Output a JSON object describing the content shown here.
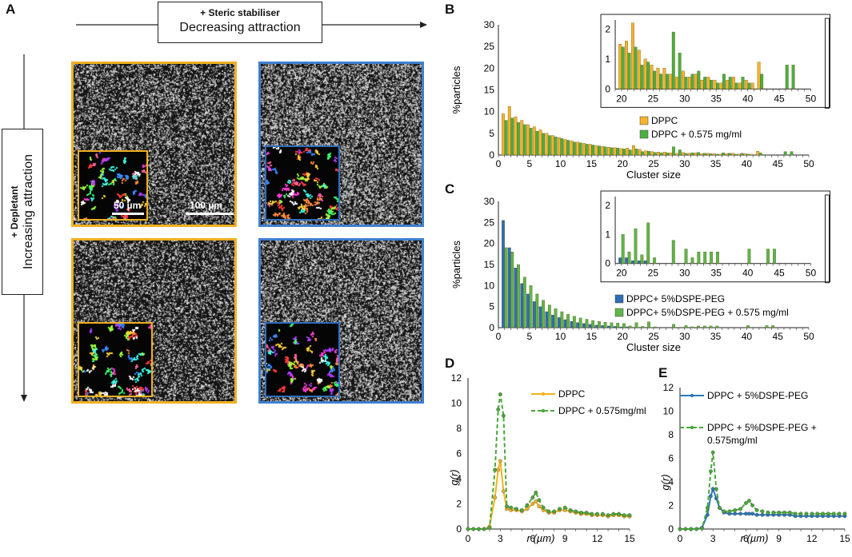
{
  "panel_labels": {
    "a": "A",
    "b": "B",
    "c": "C",
    "d": "D",
    "e": "E"
  },
  "panel_a": {
    "top_box": {
      "line1": "+ Steric stabiliser",
      "line2": "Decreasing attraction"
    },
    "side_box": {
      "line1": "+ Depletant",
      "line2": "Increasing attraction"
    },
    "scale_inset": "50 µm",
    "scale_main": "100 µm",
    "colors": {
      "dppc_border": "#f0b020",
      "peg_border": "#3f7fd0"
    }
  },
  "chart_data": [
    {
      "id": "B",
      "type": "bar",
      "title": "",
      "xlabel": "Cluster size",
      "ylabel": "%particles",
      "xlim": [
        0,
        50
      ],
      "ylim": [
        0,
        30
      ],
      "xticks": [
        0,
        5,
        10,
        15,
        20,
        25,
        30,
        35,
        40,
        45,
        50
      ],
      "yticks": [
        0,
        5,
        10,
        15,
        20,
        25,
        30
      ],
      "x": [
        1,
        2,
        3,
        4,
        5,
        6,
        7,
        8,
        9,
        10,
        11,
        12,
        13,
        14,
        15,
        16,
        17,
        18,
        19,
        20,
        21,
        22,
        23,
        24,
        25,
        26,
        27,
        28,
        29,
        30,
        31,
        32,
        33,
        34,
        35,
        36,
        37,
        38,
        39,
        40,
        41,
        42,
        43,
        44,
        45,
        46,
        47,
        48
      ],
      "series": [
        {
          "name": "DPPC",
          "color": "#f5b22c",
          "values": [
            9.5,
            11.2,
            8.8,
            8,
            7,
            6.5,
            5.8,
            5,
            4.5,
            4,
            3.6,
            3.3,
            3,
            2.7,
            2.5,
            2.2,
            2,
            1.8,
            1.7,
            1.5,
            1.6,
            2.2,
            1.3,
            1,
            0.8,
            0.7,
            0.7,
            0.5,
            0.4,
            0.6,
            0.4,
            0.5,
            0.3,
            0.4,
            0.3,
            0.2,
            0.3,
            0.4,
            0.2,
            0.3,
            0.2,
            0.9,
            0,
            0,
            0,
            0,
            0,
            0
          ]
        },
        {
          "name": "DPPC + 0.575 mg/ml",
          "color": "#4cae3f",
          "values": [
            8,
            8.5,
            7.5,
            7,
            6.2,
            5.5,
            5,
            4.5,
            4.2,
            3.8,
            3.4,
            3,
            2.8,
            2.5,
            2.3,
            2.1,
            1.9,
            1.7,
            1.6,
            1.4,
            1.2,
            1.4,
            0.8,
            0.9,
            0.6,
            0.5,
            0.5,
            1.9,
            1.2,
            0.4,
            0.5,
            0.6,
            0.4,
            0.3,
            0.2,
            0.5,
            0.4,
            0.2,
            0.4,
            0.2,
            0,
            0.5,
            0,
            0,
            0,
            0.8,
            0.8,
            0
          ]
        }
      ],
      "legend": "center-right",
      "inset": {
        "xlim": [
          19,
          50
        ],
        "ylim": [
          0,
          2.3
        ],
        "xticks": [
          20,
          25,
          30,
          35,
          40,
          45,
          50
        ],
        "yticks": [
          0,
          1,
          2
        ]
      }
    },
    {
      "id": "C",
      "type": "bar",
      "title": "",
      "xlabel": "Cluster size",
      "ylabel": "%particles",
      "xlim": [
        0,
        50
      ],
      "ylim": [
        0,
        30
      ],
      "xticks": [
        0,
        5,
        10,
        15,
        20,
        25,
        30,
        35,
        40,
        45,
        50
      ],
      "yticks": [
        0,
        5,
        10,
        15,
        20,
        25,
        30
      ],
      "x": [
        1,
        2,
        3,
        4,
        5,
        6,
        7,
        8,
        9,
        10,
        11,
        12,
        13,
        14,
        15,
        16,
        17,
        18,
        19,
        20,
        21,
        22,
        23,
        24,
        25,
        26,
        27,
        28,
        29,
        30,
        31,
        32,
        33,
        34,
        35,
        36,
        37,
        38,
        39,
        40,
        41,
        42,
        43,
        44,
        45,
        46,
        47,
        48
      ],
      "series": [
        {
          "name": "DPPC+ 5%DSPE-PEG",
          "color": "#2f6db5",
          "values": [
            25.5,
            19,
            14.2,
            10.5,
            8,
            6.2,
            5,
            3.8,
            3,
            2.4,
            1.9,
            1.5,
            1.2,
            1,
            0.8,
            0.6,
            0.5,
            0.4,
            0.3,
            0.2,
            0.2,
            0.1,
            0.1,
            0.1,
            0,
            0,
            0,
            0,
            0,
            0,
            0,
            0,
            0,
            0,
            0,
            0,
            0,
            0,
            0,
            0,
            0,
            0,
            0,
            0,
            0,
            0,
            0,
            0
          ]
        },
        {
          "name": "DPPC+ 5%DSPE-PEG + 0.575 mg/ml",
          "color": "#5fb548",
          "values": [
            19,
            18,
            15,
            12,
            10,
            8,
            6.5,
            5.4,
            4.5,
            3.8,
            3.2,
            2.7,
            2.3,
            2,
            1.7,
            1.5,
            1.3,
            1.2,
            1.1,
            1,
            0.4,
            1.2,
            0.3,
            1.4,
            0.2,
            0,
            0,
            0.8,
            0,
            0.5,
            0.2,
            0.4,
            0.4,
            0.4,
            0.4,
            0,
            0,
            0,
            0,
            0.5,
            0,
            0,
            0.5,
            0.5,
            0,
            0,
            0,
            0
          ]
        }
      ],
      "legend": "bottom-right",
      "inset": {
        "xlim": [
          19,
          50
        ],
        "ylim": [
          0,
          2.3
        ],
        "xticks": [
          20,
          25,
          30,
          35,
          40,
          45,
          50
        ],
        "yticks": [
          0,
          1,
          2
        ]
      }
    },
    {
      "id": "D",
      "type": "line",
      "xlabel": "r (µm)",
      "ylabel": "g(r)",
      "xlim": [
        0,
        15
      ],
      "ylim": [
        0,
        12
      ],
      "xticks": [
        0,
        3,
        6,
        9,
        12,
        15
      ],
      "yticks": [
        0,
        2,
        4,
        6,
        8,
        10,
        12
      ],
      "x": [
        0,
        0.5,
        1,
        1.5,
        2,
        2.5,
        2.8,
        3,
        3.3,
        3.6,
        4,
        4.5,
        5,
        5.5,
        6,
        6.3,
        6.6,
        7,
        7.5,
        8,
        8.5,
        9,
        9.5,
        10,
        10.5,
        11,
        11.5,
        12,
        12.5,
        13,
        13.5,
        14,
        14.5,
        15
      ],
      "series": [
        {
          "name": "DPPC",
          "color": "#f2b31c",
          "dash": "solid",
          "values": [
            0,
            0,
            0,
            0,
            0.2,
            2.5,
            4.7,
            5.4,
            3,
            1.6,
            1.5,
            1.5,
            1.4,
            1.6,
            2,
            2.2,
            1.8,
            1.5,
            1.3,
            1.3,
            1.5,
            1.5,
            1.4,
            1.3,
            1.2,
            1.2,
            1.1,
            1.1,
            1.1,
            1,
            1.1,
            1.1,
            1,
            1
          ]
        },
        {
          "name": "DPPC + 0.575mg/ml",
          "color": "#49a83a",
          "dash": "dashed",
          "values": [
            0,
            0,
            0,
            0,
            0.1,
            4.7,
            9.5,
            10.7,
            9,
            1.8,
            1.7,
            1.6,
            1.5,
            1.9,
            2.5,
            2.9,
            2.3,
            1.7,
            1.4,
            1.4,
            1.6,
            1.7,
            1.5,
            1.4,
            1.3,
            1.3,
            1.2,
            1.2,
            1.2,
            1.1,
            1.2,
            1.2,
            1.1,
            1.1
          ]
        }
      ],
      "legend": "top-right"
    },
    {
      "id": "E",
      "type": "line",
      "xlabel": "r (µm)",
      "ylabel": "g(r)",
      "xlim": [
        0,
        15
      ],
      "ylim": [
        0,
        12
      ],
      "xticks": [
        0,
        3,
        6,
        9,
        12,
        15
      ],
      "yticks": [
        0,
        2,
        4,
        6,
        8,
        10,
        12
      ],
      "x": [
        0,
        0.5,
        1,
        1.5,
        2,
        2.5,
        2.8,
        3,
        3.3,
        3.6,
        4,
        4.5,
        5,
        5.5,
        6,
        6.3,
        6.6,
        7,
        7.5,
        8,
        8.5,
        9,
        9.5,
        10,
        10.5,
        11,
        11.5,
        12,
        12.5,
        13,
        13.5,
        14,
        14.5,
        15
      ],
      "series": [
        {
          "name": "DPPC + 5%DSPE-PEG",
          "color": "#2a78b8",
          "dash": "solid",
          "values": [
            0,
            0,
            0,
            0,
            0.1,
            1.2,
            2.8,
            3.4,
            2.6,
            1.8,
            1.4,
            1.3,
            1.3,
            1.3,
            1.3,
            1.3,
            1.3,
            1.2,
            1.2,
            1.2,
            1.2,
            1.2,
            1.2,
            1.2,
            1.1,
            1.1,
            1.1,
            1.1,
            1.1,
            1.1,
            1.1,
            1.1,
            1.1,
            1.1
          ]
        },
        {
          "name": "DPPC + 5%DSPE-PEG + 0.575mg/ml",
          "color": "#49a83a",
          "dash": "dashed",
          "values": [
            0,
            0,
            0,
            0,
            0.05,
            1.8,
            4.9,
            6.5,
            3.4,
            1.8,
            1.5,
            1.5,
            1.6,
            1.7,
            2.2,
            2.4,
            2,
            1.6,
            1.5,
            1.4,
            1.4,
            1.4,
            1.4,
            1.4,
            1.3,
            1.3,
            1.3,
            1.3,
            1.3,
            1.3,
            1.3,
            1.3,
            1.3,
            1.3
          ]
        }
      ],
      "legend": "top-right",
      "legend_lines": {
        "dashed_line1": "DPPC + 5%DSPE-PEG +",
        "dashed_line2": "0.575mg/ml"
      }
    }
  ]
}
